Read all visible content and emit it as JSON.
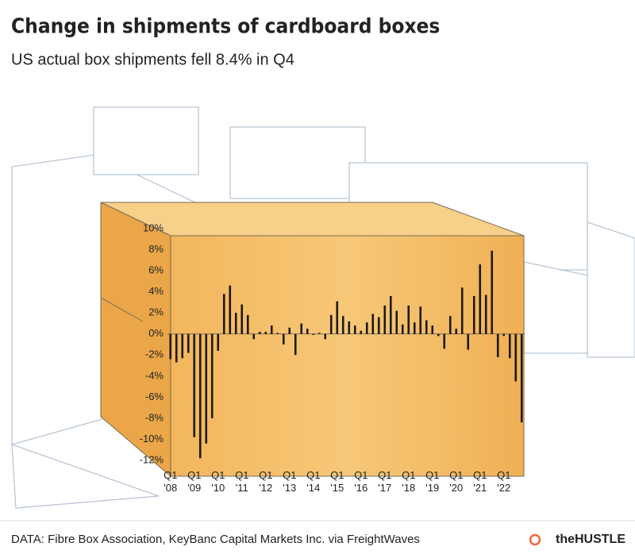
{
  "chart_data": {
    "type": "bar",
    "title": "Change in shipments of cardboard boxes",
    "subtitle": "US actual box shipments fell 8.4% in Q4",
    "source": "DATA: Fibre Box Association, KeyBanc Capital Markets Inc. via FreightWaves",
    "brand": "theHUSTLE",
    "color": "#1e1a14",
    "categories": [
      "Q1 '08",
      null,
      null,
      null,
      "Q1 '09",
      null,
      null,
      null,
      "Q1 '10",
      null,
      null,
      null,
      "Q1 '11",
      null,
      null,
      null,
      "Q1 '12",
      null,
      null,
      null,
      "Q1 '13",
      null,
      null,
      null,
      "Q1 '14",
      null,
      null,
      null,
      "Q1 '15",
      null,
      null,
      null,
      "Q1 '16",
      null,
      null,
      null,
      "Q1 '17",
      null,
      null,
      null,
      "Q1 '18",
      null,
      null,
      null,
      "Q1 '19",
      null,
      null,
      null,
      "Q1 '20",
      null,
      null,
      null,
      "Q1 '21",
      null,
      null,
      null,
      "Q1 '22",
      null,
      null,
      null
    ],
    "values": [
      -2.4,
      -2.7,
      -2.3,
      -1.8,
      -9.8,
      -11.8,
      -10.4,
      -8.0,
      -1.6,
      3.8,
      4.6,
      2.0,
      2.8,
      1.8,
      -0.5,
      0.2,
      0.2,
      0.8,
      0.1,
      -1.0,
      0.6,
      -2.0,
      1.0,
      0.5,
      -0.1,
      0.1,
      -0.5,
      1.8,
      3.1,
      1.7,
      1.2,
      0.8,
      0.3,
      1.1,
      1.9,
      1.6,
      2.7,
      3.6,
      2.2,
      0.9,
      2.7,
      1.1,
      2.6,
      1.3,
      0.8,
      -0.2,
      -1.4,
      1.7,
      0.5,
      4.4,
      -1.5,
      3.6,
      6.6,
      3.7,
      7.9,
      -2.2,
      -0.2,
      -2.3,
      -4.5,
      -8.4
    ],
    "ylim": [
      -12,
      10
    ],
    "yticks": [
      {
        "value": 10,
        "label": "10%"
      },
      {
        "value": 8,
        "label": "8%"
      },
      {
        "value": 6,
        "label": "6%"
      },
      {
        "value": 4,
        "label": "4%"
      },
      {
        "value": 2,
        "label": "2%"
      },
      {
        "value": 0,
        "label": "0%"
      },
      {
        "value": -2,
        "label": "-2%"
      },
      {
        "value": -4,
        "label": "-4%"
      },
      {
        "value": -6,
        "label": "-6%"
      },
      {
        "value": -8,
        "label": "-8%"
      },
      {
        "value": -10,
        "label": "-10%"
      },
      {
        "value": -12,
        "label": "-12%"
      }
    ],
    "grid": false
  }
}
